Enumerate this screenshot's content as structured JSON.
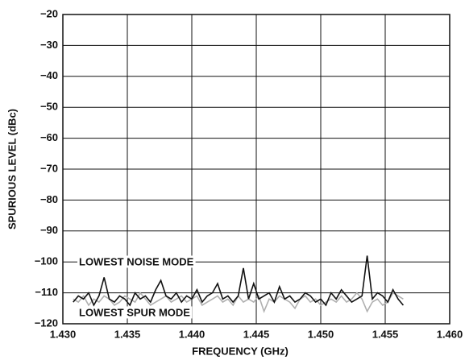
{
  "chart_data": {
    "type": "line",
    "xlabel": "FREQUENCY (GHz)",
    "ylabel": "SPURIOUS LEVEL (dBc)",
    "x": [
      1.4308,
      1.4312,
      1.4316,
      1.432,
      1.4324,
      1.4328,
      1.4332,
      1.4336,
      1.434,
      1.4344,
      1.4348,
      1.4352,
      1.4356,
      1.436,
      1.4364,
      1.4368,
      1.4372,
      1.4376,
      1.438,
      1.4384,
      1.4388,
      1.4392,
      1.4396,
      1.44,
      1.4404,
      1.4408,
      1.4412,
      1.4416,
      1.442,
      1.4424,
      1.4428,
      1.4432,
      1.4436,
      1.444,
      1.4444,
      1.4448,
      1.4452,
      1.4456,
      1.446,
      1.4464,
      1.4468,
      1.4472,
      1.4476,
      1.448,
      1.4484,
      1.4488,
      1.4492,
      1.4496,
      1.45,
      1.4504,
      1.4508,
      1.4512,
      1.4516,
      1.452,
      1.4524,
      1.4528,
      1.4532,
      1.4536,
      1.454,
      1.4544,
      1.4548,
      1.4552,
      1.4556,
      1.456,
      1.4564
    ],
    "series": [
      {
        "name": "LOWEST SPUR MODE",
        "color": "#b0b0b0",
        "values": [
          -112,
          -113,
          -111,
          -114,
          -112,
          -113,
          -111,
          -112,
          -114,
          -113,
          -111,
          -112,
          -113,
          -110,
          -112,
          -114,
          -113,
          -112,
          -111,
          -113,
          -112,
          -111,
          -113,
          -112,
          -111,
          -114,
          -113,
          -112,
          -111,
          -113,
          -112,
          -114,
          -111,
          -113,
          -112,
          -113,
          -111,
          -116,
          -112,
          -113,
          -111,
          -112,
          -113,
          -115,
          -112,
          -111,
          -113,
          -112,
          -114,
          -113,
          -112,
          -113,
          -111,
          -113,
          -112,
          -110,
          -112,
          -116,
          -113,
          -112,
          -114,
          -113,
          -110,
          -111,
          -112
        ]
      },
      {
        "name": "LOWEST NOISE MODE",
        "color": "#111111",
        "values": [
          -113,
          -111,
          -112,
          -110,
          -114,
          -111,
          -105,
          -112,
          -113,
          -111,
          -112,
          -114,
          -110,
          -112,
          -111,
          -113,
          -109,
          -106,
          -111,
          -112,
          -110,
          -113,
          -111,
          -112,
          -109,
          -113,
          -111,
          -110,
          -107,
          -112,
          -111,
          -113,
          -111,
          -102,
          -112,
          -107,
          -112,
          -111,
          -110,
          -113,
          -108,
          -112,
          -111,
          -113,
          -112,
          -110,
          -111,
          -113,
          -112,
          -114,
          -110,
          -112,
          -109,
          -111,
          -113,
          -112,
          -111,
          -98,
          -112,
          -110,
          -111,
          -113,
          -109,
          -112,
          -114
        ]
      }
    ],
    "xlim": [
      1.43,
      1.46
    ],
    "xticks": [
      {
        "value": 1.43,
        "label": "1.430"
      },
      {
        "value": 1.435,
        "label": "1.435"
      },
      {
        "value": 1.44,
        "label": "1.440"
      },
      {
        "value": 1.445,
        "label": "1.445"
      },
      {
        "value": 1.45,
        "label": "1.450"
      },
      {
        "value": 1.455,
        "label": "1.455"
      },
      {
        "value": 1.46,
        "label": "1.460"
      }
    ],
    "ylim": [
      -120,
      -20
    ],
    "yticks": [
      {
        "value": -120,
        "label": "−120"
      },
      {
        "value": -110,
        "label": "−110"
      },
      {
        "value": -100,
        "label": "−100"
      },
      {
        "value": -90,
        "label": "−90"
      },
      {
        "value": -80,
        "label": "−80"
      },
      {
        "value": -70,
        "label": "−70"
      },
      {
        "value": -60,
        "label": "−60"
      },
      {
        "value": -50,
        "label": "−50"
      },
      {
        "value": -40,
        "label": "−40"
      },
      {
        "value": -30,
        "label": "−30"
      },
      {
        "value": -20,
        "label": "−20"
      }
    ],
    "grid": true
  }
}
